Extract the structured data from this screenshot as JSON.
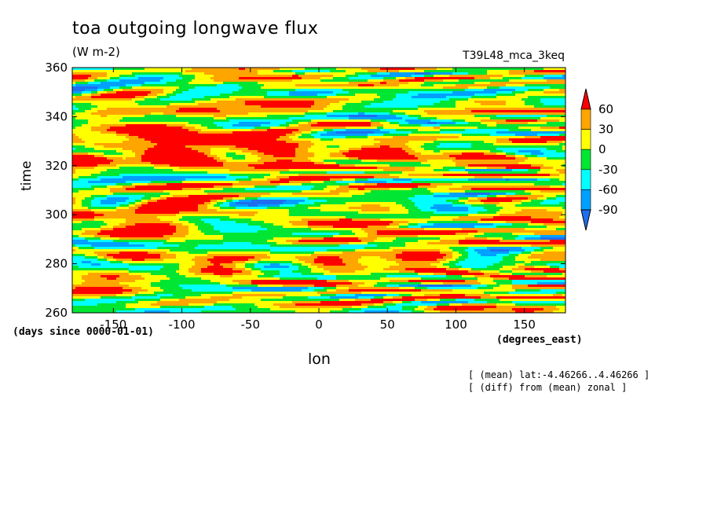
{
  "chart_data": {
    "type": "heatmap",
    "title": "toa outgoing longwave flux",
    "units": "(W m-2)",
    "experiment": "T39L48_mca_3keq",
    "xlabel": "lon",
    "xunit": "(degrees_east)",
    "ylabel": "time",
    "yunit": "(days since 0000-01-01)",
    "xlim": [
      -180,
      180
    ],
    "ylim": [
      260,
      360
    ],
    "xticks": [
      -150,
      -100,
      -50,
      0,
      50,
      100,
      150
    ],
    "yticks": [
      260,
      280,
      300,
      320,
      340,
      360
    ],
    "xtick_labels": [
      "-150",
      "-100",
      "-50",
      "0",
      "50",
      "100",
      "150"
    ],
    "ytick_labels": [
      "260",
      "280",
      "300",
      "320",
      "340",
      "360"
    ],
    "notes": [
      "[ (mean) lat:-4.46266..4.46266 ]",
      "[ (diff) from (mean) zonal ]"
    ],
    "colorbar": {
      "levels": [
        -90,
        -60,
        -30,
        0,
        30,
        60
      ],
      "level_labels": [
        "-90",
        "-60",
        "-30",
        "0",
        "30",
        "60"
      ],
      "colors": [
        "#1e6ef0",
        "#00a0ff",
        "#00ffff",
        "#00e632",
        "#ffff00",
        "#ffa500",
        "#ff0000"
      ],
      "extend": "both"
    },
    "field_summary": "zonal anomaly of OLR vs longitude and time; mostly orange/yellow (0 to 60) with eastward-propagating blue/cyan streaks (-30 to -90) and scattered red (>60) patches"
  }
}
